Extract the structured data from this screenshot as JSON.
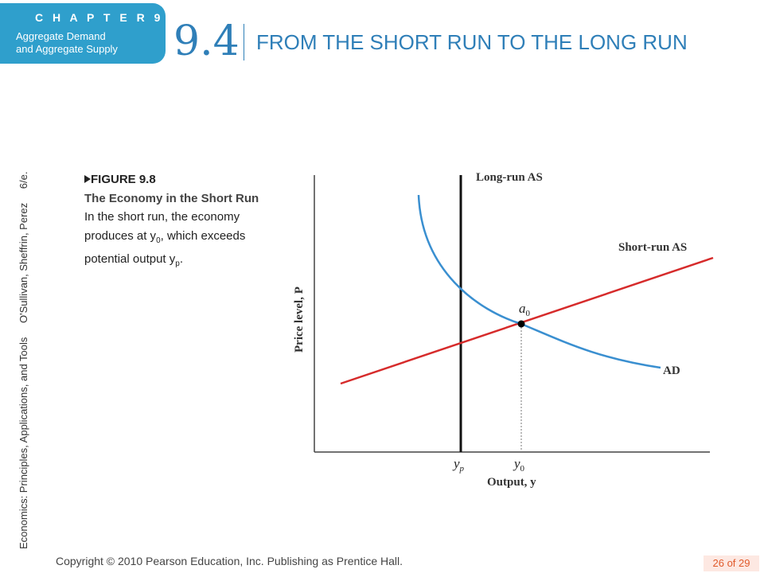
{
  "header": {
    "chapter_label": "C H A P T E R 9",
    "chapter_subtitle_line1": "Aggregate Demand",
    "chapter_subtitle_line2": "and Aggregate Supply",
    "section_number": "9.4",
    "section_title": "FROM THE SHORT RUN TO THE LONG RUN"
  },
  "side_credit": {
    "book_title": "Economics: Principles, Applications, and Tools",
    "authors": "O'Sullivan, Sheffrin, Perez",
    "edition": "6/e."
  },
  "caption": {
    "figure_number": "FIGURE 9.8",
    "figure_title": "The Economy in the Short Run",
    "text_prefix": "In the short run, the economy produces at y",
    "y0_sub": "0",
    "text_middle": ", which exceeds potential output y",
    "yp_sub": "p",
    "text_suffix": "."
  },
  "diagram": {
    "y_axis_label": "Price level, P",
    "x_axis_label": "Output, y",
    "long_run_label": "Long-run AS",
    "short_run_label": "Short-run AS",
    "ad_label": "AD",
    "point_label": "a",
    "point_sub": "0",
    "yp_tick": "y",
    "yp_tick_sub": "p",
    "y0_tick": "y",
    "y0_tick_sub": "0",
    "colors": {
      "short_run_as": "#d62b2b",
      "ad": "#3a8fd0",
      "long_run_as": "#111111"
    }
  },
  "footer": {
    "copyright": "Copyright © 2010 Pearson Education, Inc. Publishing as Prentice Hall.",
    "page_number": "26 of 29"
  }
}
